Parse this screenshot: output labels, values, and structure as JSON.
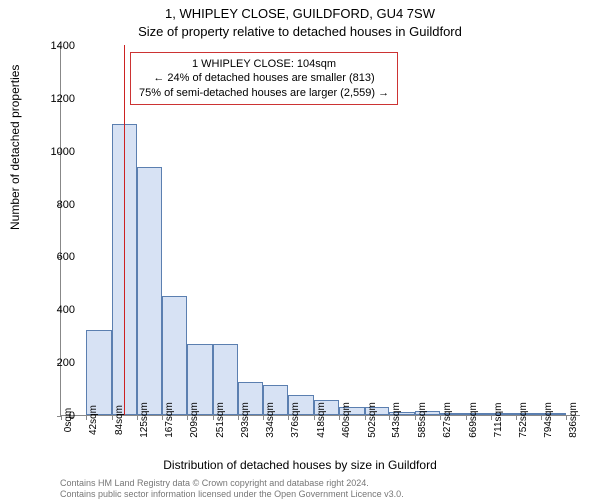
{
  "title_line1": "1, WHIPLEY CLOSE, GUILDFORD, GU4 7SW",
  "title_line2": "Size of property relative to detached houses in Guildford",
  "ylabel": "Number of detached properties",
  "xlabel": "Distribution of detached houses by size in Guildford",
  "footer1": "Contains HM Land Registry data © Crown copyright and database right 2024.",
  "footer2": "Contains public sector information licensed under the Open Government Licence v3.0.",
  "info_box": {
    "line1": "1 WHIPLEY CLOSE: 104sqm",
    "line2": "← 24% of detached houses are smaller (813)",
    "line3": "75% of semi-detached houses are larger (2,559) →"
  },
  "histogram": {
    "type": "bar",
    "bar_fill": "#d7e2f4",
    "bar_stroke": "#5b7fb0",
    "marker_color": "#cc2222",
    "marker_x_sqm": 104,
    "background_color": "#ffffff",
    "ylim": [
      0,
      1400
    ],
    "ytick_step": 200,
    "xlim_sqm": [
      0,
      860
    ],
    "x_tick_labels": [
      "0sqm",
      "42sqm",
      "84sqm",
      "125sqm",
      "167sqm",
      "209sqm",
      "251sqm",
      "293sqm",
      "334sqm",
      "376sqm",
      "418sqm",
      "460sqm",
      "502sqm",
      "543sqm",
      "585sqm",
      "627sqm",
      "669sqm",
      "711sqm",
      "752sqm",
      "794sqm",
      "836sqm"
    ],
    "x_tick_values": [
      0,
      42,
      84,
      125,
      167,
      209,
      251,
      293,
      334,
      376,
      418,
      460,
      502,
      543,
      585,
      627,
      669,
      711,
      752,
      794,
      836
    ],
    "bars": [
      {
        "x_sqm": 42,
        "width_sqm": 42,
        "value": 320
      },
      {
        "x_sqm": 84,
        "width_sqm": 41,
        "value": 1100
      },
      {
        "x_sqm": 125,
        "width_sqm": 42,
        "value": 940
      },
      {
        "x_sqm": 167,
        "width_sqm": 42,
        "value": 450
      },
      {
        "x_sqm": 209,
        "width_sqm": 42,
        "value": 270
      },
      {
        "x_sqm": 251,
        "width_sqm": 42,
        "value": 270
      },
      {
        "x_sqm": 293,
        "width_sqm": 41,
        "value": 125
      },
      {
        "x_sqm": 334,
        "width_sqm": 42,
        "value": 115
      },
      {
        "x_sqm": 376,
        "width_sqm": 42,
        "value": 75
      },
      {
        "x_sqm": 418,
        "width_sqm": 42,
        "value": 55
      },
      {
        "x_sqm": 460,
        "width_sqm": 42,
        "value": 30
      },
      {
        "x_sqm": 502,
        "width_sqm": 41,
        "value": 30
      },
      {
        "x_sqm": 543,
        "width_sqm": 42,
        "value": 12
      },
      {
        "x_sqm": 585,
        "width_sqm": 42,
        "value": 15
      },
      {
        "x_sqm": 627,
        "width_sqm": 42,
        "value": 6
      },
      {
        "x_sqm": 669,
        "width_sqm": 42,
        "value": 6
      },
      {
        "x_sqm": 711,
        "width_sqm": 41,
        "value": 6
      },
      {
        "x_sqm": 752,
        "width_sqm": 42,
        "value": 4
      },
      {
        "x_sqm": 794,
        "width_sqm": 42,
        "value": 4
      }
    ],
    "title_fontsize": 13,
    "label_fontsize": 12,
    "tick_fontsize": 10
  }
}
